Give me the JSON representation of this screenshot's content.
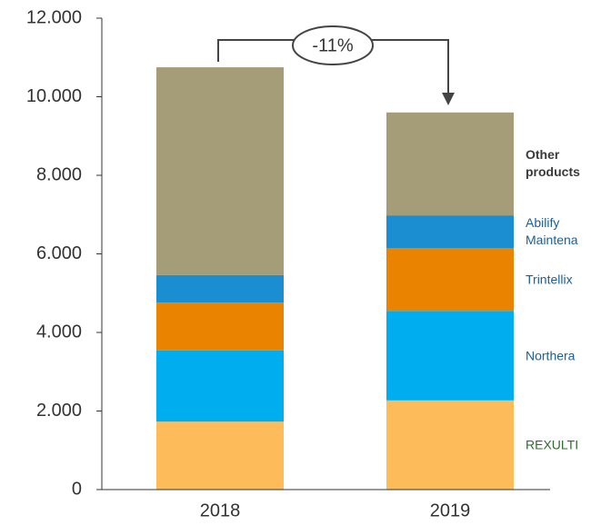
{
  "chart_data": {
    "type": "stacked_bar",
    "categories": [
      "2018",
      "2019"
    ],
    "series": [
      {
        "name": "REXULTI",
        "color": "#FDBB59",
        "values": [
          1730,
          2270
        ]
      },
      {
        "name": "Northera",
        "color": "#00AEEF",
        "values": [
          1810,
          2280
        ]
      },
      {
        "name": "Trintellix",
        "color": "#E98300",
        "values": [
          1220,
          1600
        ]
      },
      {
        "name": "Abilify Maintena",
        "color": "#1B8DD1",
        "values": [
          700,
          830
        ]
      },
      {
        "name": "Other products",
        "color": "#A59D78",
        "values": [
          5290,
          2620
        ]
      }
    ],
    "ylim": [
      0,
      12000
    ],
    "yticks": [
      0,
      {
        "value": 2000,
        "label": "2.000"
      },
      {
        "value": 4000,
        "label": "4.000"
      },
      {
        "value": 6000,
        "label": "6.000"
      },
      {
        "value": 8000,
        "label": "8.000"
      },
      {
        "value": 10000,
        "label": "10.000"
      },
      {
        "value": 12000,
        "label": "12.000"
      }
    ],
    "annotation": "-11%"
  }
}
